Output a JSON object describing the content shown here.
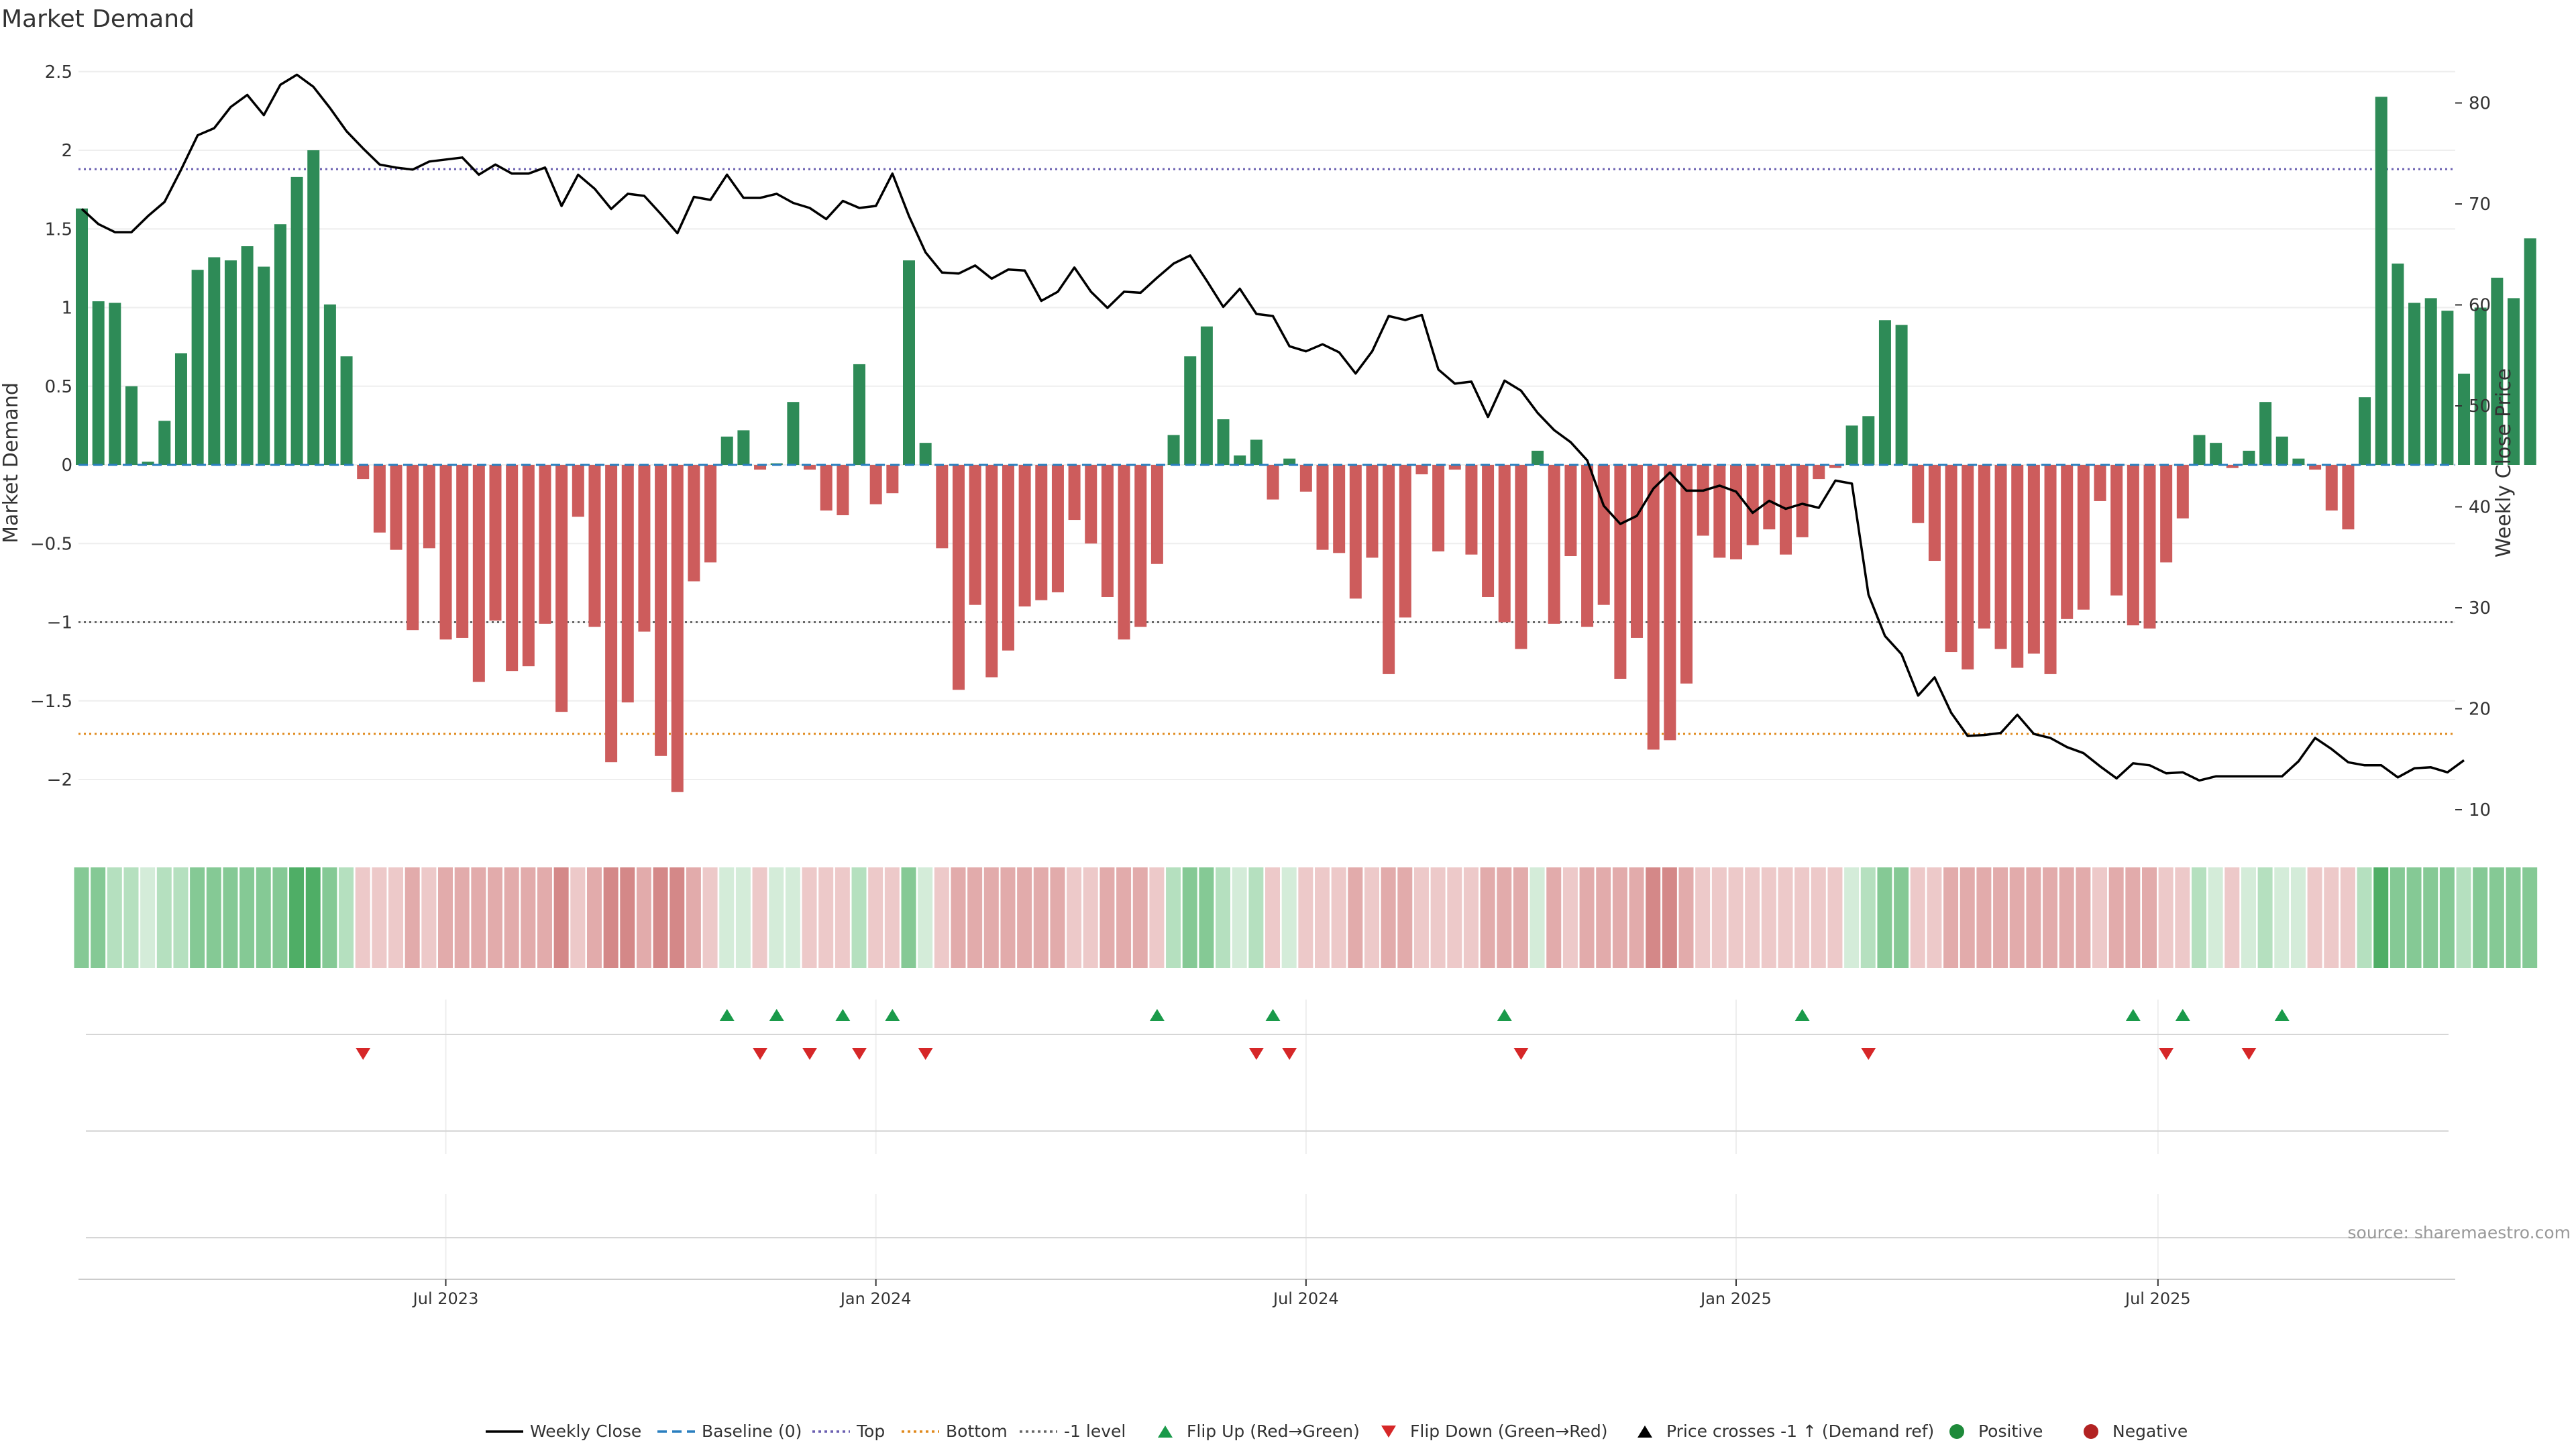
{
  "chart_data": {
    "type": "bar",
    "title": "Market Demand",
    "ylabel": "Market Demand",
    "y2label": "Weekly Close Price",
    "ylim": [
      -2.3,
      2.6
    ],
    "y2lim": [
      8,
      85
    ],
    "y_ticks": [
      2.5,
      2,
      1.5,
      1,
      0.5,
      0,
      -0.5,
      -1,
      -1.5,
      -2
    ],
    "y_tick_labels": [
      "2.5",
      "2",
      "1.5",
      "1",
      "0.5",
      "0",
      "−0.5",
      "−1",
      "−1.5",
      "−2"
    ],
    "y2_ticks": [
      80,
      70,
      60,
      50,
      40,
      30,
      20,
      10
    ],
    "x_ticks": [
      {
        "label": "Jul 2023",
        "week": 22
      },
      {
        "label": "Jan 2024",
        "week": 48
      },
      {
        "label": "Jul 2024",
        "week": 74
      },
      {
        "label": "Jan 2025",
        "week": 100
      },
      {
        "label": "Jul 2025",
        "week": 125.5
      }
    ],
    "reference_lines": {
      "top": 1.88,
      "bottom": -1.71,
      "minus_one": -1.0,
      "baseline": 0
    },
    "values": [
      1.63,
      1.04,
      1.03,
      0.5,
      0.02,
      0.28,
      0.71,
      1.24,
      1.32,
      1.3,
      1.39,
      1.26,
      1.53,
      1.83,
      2.0,
      1.02,
      0.69,
      -0.09,
      -0.43,
      -0.54,
      -1.05,
      -0.53,
      -1.11,
      -1.1,
      -1.38,
      -0.99,
      -1.31,
      -1.28,
      -1.01,
      -1.57,
      -0.33,
      -1.03,
      -1.89,
      -1.51,
      -1.06,
      -1.85,
      -2.08,
      -0.74,
      -0.62,
      0.18,
      0.22,
      -0.03,
      0.01,
      0.4,
      -0.03,
      -0.29,
      -0.32,
      0.64,
      -0.25,
      -0.18,
      1.3,
      0.14,
      -0.53,
      -1.43,
      -0.89,
      -1.35,
      -1.18,
      -0.9,
      -0.86,
      -0.81,
      -0.35,
      -0.5,
      -0.84,
      -1.11,
      -1.03,
      -0.63,
      0.19,
      0.69,
      0.88,
      0.29,
      0.06,
      0.16,
      -0.22,
      0.04,
      -0.17,
      -0.54,
      -0.56,
      -0.85,
      -0.59,
      -1.33,
      -0.97,
      -0.06,
      -0.55,
      -0.03,
      -0.57,
      -0.84,
      -1.0,
      -1.17,
      0.09,
      -1.01,
      -0.58,
      -1.03,
      -0.89,
      -1.36,
      -1.1,
      -1.81,
      -1.75,
      -1.39,
      -0.45,
      -0.59,
      -0.6,
      -0.51,
      -0.41,
      -0.57,
      -0.46,
      -0.09,
      -0.02,
      0.25,
      0.31,
      0.92,
      0.89,
      -0.37,
      -0.61,
      -1.19,
      -1.3,
      -1.04,
      -1.17,
      -1.29,
      -1.2,
      -1.33,
      -0.98,
      -0.92,
      -0.23,
      -0.83,
      -1.02,
      -1.04,
      -0.62,
      -0.34,
      0.19,
      0.14,
      -0.02,
      0.09,
      0.4,
      0.18,
      0.04,
      -0.03,
      -0.29,
      -0.41,
      0.43,
      2.34,
      1.28,
      1.03,
      1.06,
      0.98,
      0.58,
      1.0,
      1.19,
      1.06,
      1.44
    ],
    "price": [
      [
        0,
        69.5
      ],
      [
        1,
        68
      ],
      [
        2,
        67.2
      ],
      [
        3,
        67.2
      ],
      [
        4,
        68.8
      ],
      [
        5,
        70.2
      ],
      [
        6,
        73.4
      ],
      [
        7,
        76.8
      ],
      [
        8,
        77.5
      ],
      [
        9,
        79.6
      ],
      [
        10,
        80.8
      ],
      [
        11,
        78.8
      ],
      [
        12,
        81.8
      ],
      [
        13,
        82.8
      ],
      [
        14,
        81.6
      ],
      [
        15,
        79.5
      ],
      [
        16,
        77.2
      ],
      [
        17,
        75.5
      ],
      [
        18,
        73.9
      ],
      [
        19,
        73.6
      ],
      [
        20,
        73.4
      ],
      [
        21,
        74.2
      ],
      [
        22,
        74.4
      ],
      [
        23,
        74.6
      ],
      [
        24,
        72.9
      ],
      [
        25,
        73.9
      ],
      [
        26,
        73
      ],
      [
        27,
        73
      ],
      [
        28,
        73.6
      ],
      [
        29,
        69.8
      ],
      [
        30,
        72.9
      ],
      [
        31,
        71.5
      ],
      [
        32,
        69.5
      ],
      [
        33,
        71
      ],
      [
        34,
        70.8
      ],
      [
        35,
        69
      ],
      [
        36,
        67.1
      ],
      [
        37,
        70.7
      ],
      [
        38,
        70.4
      ],
      [
        39,
        72.9
      ],
      [
        40,
        70.6
      ],
      [
        41,
        70.6
      ],
      [
        42,
        71
      ],
      [
        43,
        70.1
      ],
      [
        44,
        69.6
      ],
      [
        45,
        68.5
      ],
      [
        46,
        70.3
      ],
      [
        47,
        69.6
      ],
      [
        48,
        69.8
      ],
      [
        49,
        73
      ],
      [
        50,
        68.8
      ],
      [
        51,
        65.2
      ],
      [
        52,
        63.2
      ],
      [
        53,
        63.1
      ],
      [
        54,
        63.9
      ],
      [
        55,
        62.6
      ],
      [
        56,
        63.5
      ],
      [
        57,
        63.4
      ],
      [
        58,
        60.4
      ],
      [
        59,
        61.3
      ],
      [
        60,
        63.7
      ],
      [
        61,
        61.3
      ],
      [
        62,
        59.7
      ],
      [
        63,
        61.3
      ],
      [
        64,
        61.2
      ],
      [
        65,
        62.7
      ],
      [
        66,
        64.1
      ],
      [
        67,
        64.9
      ],
      [
        68,
        62.4
      ],
      [
        69,
        59.8
      ],
      [
        70,
        61.6
      ],
      [
        71,
        59.1
      ],
      [
        72,
        58.9
      ],
      [
        73,
        55.9
      ],
      [
        74,
        55.4
      ],
      [
        75,
        56.1
      ],
      [
        76,
        55.3
      ],
      [
        77,
        53.2
      ],
      [
        78,
        55.4
      ],
      [
        79,
        58.9
      ],
      [
        80,
        58.5
      ],
      [
        81,
        59
      ],
      [
        82,
        53.6
      ],
      [
        83,
        52.2
      ],
      [
        84,
        52.4
      ],
      [
        85,
        48.9
      ],
      [
        86,
        52.5
      ],
      [
        87,
        51.5
      ],
      [
        88,
        49.3
      ],
      [
        89,
        47.6
      ],
      [
        90,
        46.4
      ],
      [
        91,
        44.6
      ],
      [
        92,
        40.1
      ],
      [
        93,
        38.3
      ],
      [
        94,
        39.1
      ],
      [
        95,
        41.8
      ],
      [
        96,
        43.4
      ],
      [
        97,
        41.6
      ],
      [
        98,
        41.6
      ],
      [
        99,
        42.1
      ],
      [
        100,
        41.5
      ],
      [
        101,
        39.4
      ],
      [
        102,
        40.6
      ],
      [
        103,
        39.8
      ],
      [
        104,
        40.3
      ],
      [
        105,
        39.9
      ],
      [
        106,
        42.6
      ],
      [
        107,
        42.3
      ],
      [
        108,
        31.3
      ],
      [
        109,
        27.2
      ],
      [
        110,
        25.4
      ],
      [
        111,
        21.3
      ],
      [
        112,
        23.1
      ],
      [
        113,
        19.6
      ],
      [
        114,
        17.3
      ],
      [
        115,
        17.4
      ],
      [
        116,
        17.6
      ],
      [
        117,
        19.4
      ],
      [
        118,
        17.5
      ],
      [
        119,
        17.1
      ],
      [
        120,
        16.2
      ],
      [
        121,
        15.6
      ],
      [
        122,
        14.3
      ],
      [
        123,
        13.1
      ],
      [
        124,
        14.6
      ],
      [
        125,
        14.4
      ],
      [
        126,
        13.6
      ],
      [
        127,
        13.7
      ],
      [
        128,
        12.9
      ],
      [
        129,
        13.3
      ],
      [
        130,
        13.3
      ],
      [
        131,
        13.3
      ],
      [
        132,
        13.3
      ],
      [
        133,
        13.3
      ],
      [
        134,
        14.8
      ],
      [
        135,
        17.1
      ],
      [
        136,
        16
      ],
      [
        137,
        14.7
      ],
      [
        138,
        14.4
      ],
      [
        139,
        14.4
      ],
      [
        140,
        13.2
      ],
      [
        141,
        14.1
      ],
      [
        142,
        14.2
      ],
      [
        143,
        13.7
      ],
      [
        144,
        14.9
      ]
    ],
    "strip_shades": [
      2,
      2,
      1,
      1,
      0,
      1,
      1,
      2,
      2,
      2,
      2,
      2,
      2,
      3,
      3,
      2,
      1,
      0,
      0,
      0,
      1,
      0,
      1,
      1,
      1,
      1,
      1,
      1,
      1,
      2,
      0,
      1,
      2,
      2,
      1,
      2,
      2,
      1,
      0,
      0,
      0,
      0,
      0,
      0,
      0,
      0,
      0,
      1,
      0,
      0,
      2,
      0,
      0,
      1,
      1,
      1,
      1,
      1,
      1,
      1,
      0,
      0,
      1,
      1,
      1,
      0,
      1,
      2,
      2,
      1,
      0,
      1,
      0,
      0,
      0,
      0,
      0,
      1,
      0,
      1,
      1,
      0,
      0,
      0,
      0,
      1,
      1,
      1,
      0,
      1,
      0,
      1,
      1,
      1,
      1,
      2,
      2,
      1,
      0,
      0,
      0,
      0,
      0,
      0,
      0,
      0,
      0,
      0,
      1,
      2,
      2,
      0,
      0,
      1,
      1,
      1,
      1,
      1,
      1,
      1,
      1,
      1,
      0,
      1,
      1,
      1,
      0,
      0,
      1,
      0,
      0,
      0,
      1,
      0,
      0,
      0,
      0,
      0,
      1,
      3,
      2,
      2,
      2,
      2,
      1,
      2,
      2,
      2,
      2
    ],
    "flip_up_weeks": [
      39,
      42,
      46,
      49,
      65,
      72,
      86,
      104,
      124,
      127,
      133
    ],
    "flip_down_weeks": [
      17,
      41,
      44,
      47,
      51,
      71,
      73,
      87,
      108,
      126,
      131
    ],
    "legend": [
      {
        "label": "Weekly Close",
        "kind": "line-solid",
        "color": "#000000"
      },
      {
        "label": "Baseline (0)",
        "kind": "line-dashed",
        "color": "#2a7fbf"
      },
      {
        "label": "Top",
        "kind": "line-dotted",
        "color": "#6a5fb0"
      },
      {
        "label": "Bottom",
        "kind": "line-dotted",
        "color": "#e08a1e"
      },
      {
        "label": "-1 level",
        "kind": "line-dotted",
        "color": "#666666"
      },
      {
        "label": "Flip Up (Red→Green)",
        "kind": "tri-up",
        "color": "#1a9a4a"
      },
      {
        "label": "Flip Down (Green→Red)",
        "kind": "tri-down",
        "color": "#d62728"
      },
      {
        "label": "Price crosses -1 ↑ (Demand ref)",
        "kind": "tri-up",
        "color": "#000000"
      },
      {
        "label": "Positive",
        "kind": "dot",
        "color": "#1e8a3a"
      },
      {
        "label": "Negative",
        "kind": "dot",
        "color": "#b22222"
      }
    ],
    "source": "source: sharemaestro.com",
    "colors": {
      "positive_bar": "#2e8b57",
      "negative_bar": "#cd5c5c",
      "price_line": "#000000",
      "top_line": "#6a5fb0",
      "bottom_line": "#e08a1e",
      "minus_one_line": "#666666",
      "baseline": "#2a7fbf",
      "green_shades": [
        "#d4ecd9",
        "#b5e0bf",
        "#85c995",
        "#4fae66"
      ],
      "red_shades": [
        "#edc9c9",
        "#e2abab",
        "#d48888",
        "#c06060"
      ]
    }
  }
}
